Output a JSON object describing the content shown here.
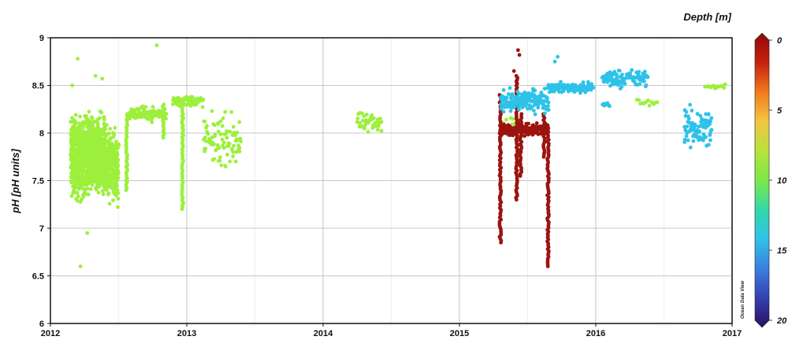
{
  "chart_data": {
    "type": "scatter",
    "title": "",
    "xlabel": "",
    "ylabel": "pH [pH units]",
    "xlim": [
      2012,
      2017
    ],
    "ylim": [
      6,
      9
    ],
    "x_ticks": [
      "2012",
      "2013",
      "2014",
      "2015",
      "2016",
      "2017"
    ],
    "y_ticks": [
      "6",
      "6.5",
      "7",
      "7.5",
      "8",
      "8.5",
      "9"
    ],
    "grid": true,
    "colorbar": {
      "label": "Depth [m]",
      "range": [
        0,
        20
      ],
      "reversed": true,
      "ticks": [
        "0",
        "5",
        "10",
        "15",
        "20"
      ],
      "colors": [
        "#8e0a0a",
        "#c8200e",
        "#f07a1c",
        "#f5c542",
        "#b8e23a",
        "#7be84a",
        "#34d8a8",
        "#2fc2e8",
        "#3a7fe0",
        "#3540b0",
        "#2a1060"
      ]
    },
    "watermark": "Ocean Data View",
    "series": [
      {
        "depth_m": 9,
        "color": "#9cf03c",
        "segments": [
          {
            "x_start": 2012.15,
            "x_end": 2012.42,
            "y_min": 7.2,
            "y_max": 8.3,
            "count": 1100
          },
          {
            "x_start": 2012.42,
            "x_end": 2012.5,
            "y_min": 7.1,
            "y_max": 8.2,
            "count": 180
          },
          {
            "x_start": 2012.58,
            "x_end": 2012.85,
            "y_min": 8.1,
            "y_max": 8.3,
            "count": 90
          },
          {
            "x_start": 2012.9,
            "x_end": 2013.12,
            "y_min": 8.25,
            "y_max": 8.42,
            "count": 70
          },
          {
            "x_start": 2013.12,
            "x_end": 2013.4,
            "y_min": 7.55,
            "y_max": 8.3,
            "count": 90
          },
          {
            "x_start": 2014.25,
            "x_end": 2014.43,
            "y_min": 7.95,
            "y_max": 8.25,
            "count": 40
          },
          {
            "x_start": 2015.3,
            "x_end": 2015.45,
            "y_min": 7.9,
            "y_max": 8.25,
            "count": 25
          },
          {
            "x_start": 2016.3,
            "x_end": 2016.45,
            "y_min": 8.25,
            "y_max": 8.38,
            "count": 12
          },
          {
            "x_start": 2016.8,
            "x_end": 2016.95,
            "y_min": 8.45,
            "y_max": 8.52,
            "count": 15
          }
        ],
        "columns": [
          {
            "x": 2012.56,
            "y_min": 7.4,
            "y_max": 8.2
          },
          {
            "x": 2012.83,
            "y_min": 7.95,
            "y_max": 8.3
          },
          {
            "x": 2012.97,
            "y_min": 7.2,
            "y_max": 8.3
          }
        ],
        "outliers": [
          {
            "x": 2012.2,
            "y": 8.78
          },
          {
            "x": 2012.27,
            "y": 6.95
          },
          {
            "x": 2012.22,
            "y": 6.6
          },
          {
            "x": 2012.33,
            "y": 8.6
          },
          {
            "x": 2012.38,
            "y": 8.57
          },
          {
            "x": 2012.78,
            "y": 8.92
          },
          {
            "x": 2012.16,
            "y": 8.5
          }
        ]
      },
      {
        "depth_m": 0.5,
        "color": "#9b1410",
        "segments": [
          {
            "x_start": 2015.3,
            "x_end": 2015.65,
            "y_min": 7.95,
            "y_max": 8.12,
            "count": 220
          }
        ],
        "columns": [
          {
            "x": 2015.3,
            "y_min": 6.85,
            "y_max": 8.4
          },
          {
            "x": 2015.42,
            "y_min": 7.3,
            "y_max": 8.6
          },
          {
            "x": 2015.45,
            "y_min": 7.55,
            "y_max": 8.2
          },
          {
            "x": 2015.62,
            "y_min": 7.75,
            "y_max": 8.2
          },
          {
            "x": 2015.65,
            "y_min": 6.6,
            "y_max": 8.05
          }
        ],
        "outliers": [
          {
            "x": 2015.43,
            "y": 8.87
          },
          {
            "x": 2015.44,
            "y": 8.82
          },
          {
            "x": 2015.4,
            "y": 8.65
          },
          {
            "x": 2015.42,
            "y": 8.55
          }
        ]
      },
      {
        "depth_m": 15,
        "color": "#2ec2e8",
        "segments": [
          {
            "x_start": 2015.3,
            "x_end": 2015.65,
            "y_min": 8.18,
            "y_max": 8.5,
            "count": 180
          },
          {
            "x_start": 2015.65,
            "x_end": 2015.98,
            "y_min": 8.4,
            "y_max": 8.55,
            "count": 120
          },
          {
            "x_start": 2016.05,
            "x_end": 2016.1,
            "y_min": 8.25,
            "y_max": 8.35,
            "count": 12
          },
          {
            "x_start": 2016.05,
            "x_end": 2016.38,
            "y_min": 8.45,
            "y_max": 8.7,
            "count": 110
          },
          {
            "x_start": 2016.65,
            "x_end": 2016.85,
            "y_min": 7.75,
            "y_max": 8.35,
            "count": 90
          }
        ],
        "columns": [],
        "outliers": [
          {
            "x": 2015.72,
            "y": 8.8
          },
          {
            "x": 2015.7,
            "y": 8.75
          }
        ]
      }
    ]
  }
}
